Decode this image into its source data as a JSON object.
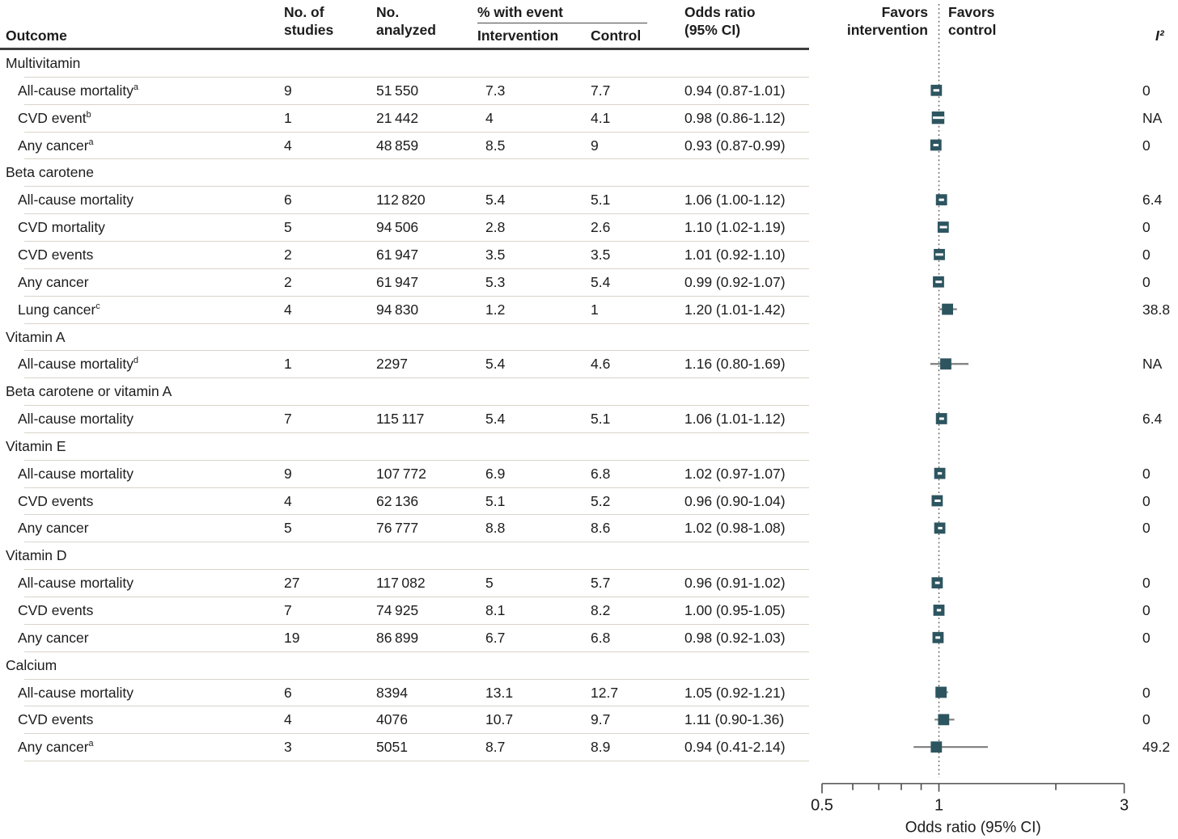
{
  "header": {
    "col_outcome": "Outcome",
    "col_studies": "No. of\nstudies",
    "col_analyzed": "No.\nanalyzed",
    "col_event_group": "% with event",
    "col_intervention": "Intervention",
    "col_control": "Control",
    "col_or": "Odds ratio\n(95% CI)",
    "favors_intervention": "Favors\nintervention",
    "favors_control": "Favors\ncontrol",
    "col_i2": "I²"
  },
  "colors": {
    "marker": "#2d5560",
    "ci_line": "#7d7d7d",
    "ci_inner_dash": "#ffffff",
    "separator": "#d9d4ca",
    "header_rule": "#3d3d3d",
    "axis": "#4d4d4d",
    "dotted_line": "#5a5a5a",
    "text": "#1c1c1c"
  },
  "chart_data": {
    "type": "forest",
    "marker_shape": "square",
    "null_line": 1,
    "axis": {
      "xmin": 0.5,
      "xmax": 3,
      "ticks": [
        0.5,
        0.6,
        0.7,
        0.8,
        0.9,
        1,
        2,
        3
      ],
      "labeled_ticks": [
        "0.5",
        "1",
        "3"
      ],
      "xlabel": "Odds ratio (95% CI)"
    },
    "rows": [
      {
        "t": "section",
        "outcome": "Multivitamin"
      },
      {
        "t": "data",
        "outcome": "All-cause mortality",
        "sup": "a",
        "studies": "9",
        "analyzed": "51 550",
        "intervention": "7.3",
        "control": "7.7",
        "or_text": "0.94 (0.87-1.01)",
        "or": 0.94,
        "lo": 0.87,
        "hi": 1.01,
        "i2": "0"
      },
      {
        "t": "data",
        "outcome": "CVD event",
        "sup": "b",
        "studies": "1",
        "analyzed": "21 442",
        "intervention": "4",
        "control": "4.1",
        "or_text": "0.98 (0.86-1.12)",
        "or": 0.98,
        "lo": 0.86,
        "hi": 1.12,
        "i2": "NA",
        "sz": 15.5
      },
      {
        "t": "data",
        "outcome": "Any cancer",
        "sup": "a",
        "studies": "4",
        "analyzed": "48 859",
        "intervention": "8.5",
        "control": "9",
        "or_text": "0.93 (0.87-0.99)",
        "or": 0.93,
        "lo": 0.87,
        "hi": 0.99,
        "i2": "0"
      },
      {
        "t": "section",
        "outcome": "Beta carotene"
      },
      {
        "t": "data",
        "outcome": "All-cause mortality",
        "studies": "6",
        "analyzed": "112 820",
        "intervention": "5.4",
        "control": "5.1",
        "or_text": "1.06 (1.00-1.12)",
        "or": 1.06,
        "lo": 1.0,
        "hi": 1.12,
        "i2": "6.4"
      },
      {
        "t": "data",
        "outcome": "CVD mortality",
        "studies": "5",
        "analyzed": "94 506",
        "intervention": "2.8",
        "control": "2.6",
        "or_text": "1.10 (1.02-1.19)",
        "or": 1.1,
        "lo": 1.02,
        "hi": 1.19,
        "i2": "0"
      },
      {
        "t": "data",
        "outcome": "CVD events",
        "studies": "2",
        "analyzed": "61 947",
        "intervention": "3.5",
        "control": "3.5",
        "or_text": "1.01 (0.92-1.10)",
        "or": 1.01,
        "lo": 0.92,
        "hi": 1.1,
        "i2": "0"
      },
      {
        "t": "data",
        "outcome": "Any cancer",
        "studies": "2",
        "analyzed": "61 947",
        "intervention": "5.3",
        "control": "5.4",
        "or_text": "0.99 (0.92-1.07)",
        "or": 0.99,
        "lo": 0.92,
        "hi": 1.07,
        "i2": "0"
      },
      {
        "t": "data",
        "outcome": "Lung cancer",
        "sup": "c",
        "studies": "4",
        "analyzed": "94 830",
        "intervention": "1.2",
        "control": "1",
        "or_text": "1.20 (1.01-1.42)",
        "or": 1.2,
        "lo": 1.01,
        "hi": 1.42,
        "i2": "38.8"
      },
      {
        "t": "section",
        "outcome": "Vitamin A"
      },
      {
        "t": "data",
        "outcome": "All-cause mortality",
        "sup": "d",
        "studies": "1",
        "analyzed": "2297",
        "intervention": "5.4",
        "control": "4.6",
        "or_text": "1.16 (0.80-1.69)",
        "or": 1.16,
        "lo": 0.8,
        "hi": 1.69,
        "i2": "NA"
      },
      {
        "t": "section",
        "outcome": "Beta carotene or vitamin A"
      },
      {
        "t": "data",
        "outcome": "All-cause mortality",
        "studies": "7",
        "analyzed": "115 117",
        "intervention": "5.4",
        "control": "5.1",
        "or_text": "1.06 (1.01-1.12)",
        "or": 1.06,
        "lo": 1.01,
        "hi": 1.12,
        "i2": "6.4"
      },
      {
        "t": "section",
        "outcome": "Vitamin E"
      },
      {
        "t": "data",
        "outcome": "All-cause mortality",
        "studies": "9",
        "analyzed": "107 772",
        "intervention": "6.9",
        "control": "6.8",
        "or_text": "1.02 (0.97-1.07)",
        "or": 1.02,
        "lo": 0.97,
        "hi": 1.07,
        "i2": "0"
      },
      {
        "t": "data",
        "outcome": "CVD events",
        "studies": "4",
        "analyzed": "62 136",
        "intervention": "5.1",
        "control": "5.2",
        "or_text": "0.96 (0.90-1.04)",
        "or": 0.96,
        "lo": 0.9,
        "hi": 1.04,
        "i2": "0"
      },
      {
        "t": "data",
        "outcome": "Any cancer",
        "studies": "5",
        "analyzed": "76 777",
        "intervention": "8.8",
        "control": "8.6",
        "or_text": "1.02 (0.98-1.08)",
        "or": 1.02,
        "lo": 0.98,
        "hi": 1.08,
        "i2": "0"
      },
      {
        "t": "section",
        "outcome": "Vitamin D"
      },
      {
        "t": "data",
        "outcome": "All-cause mortality",
        "studies": "27",
        "analyzed": "117 082",
        "intervention": "5",
        "control": "5.7",
        "or_text": "0.96 (0.91-1.02)",
        "or": 0.96,
        "lo": 0.91,
        "hi": 1.02,
        "i2": "0"
      },
      {
        "t": "data",
        "outcome": "CVD events",
        "studies": "7",
        "analyzed": "74 925",
        "intervention": "8.1",
        "control": "8.2",
        "or_text": "1.00 (0.95-1.05)",
        "or": 1.0,
        "lo": 0.95,
        "hi": 1.05,
        "i2": "0"
      },
      {
        "t": "data",
        "outcome": "Any cancer",
        "studies": "19",
        "analyzed": "86 899",
        "intervention": "6.7",
        "control": "6.8",
        "or_text": "0.98 (0.92-1.03)",
        "or": 0.98,
        "lo": 0.92,
        "hi": 1.03,
        "i2": "0"
      },
      {
        "t": "section",
        "outcome": "Calcium"
      },
      {
        "t": "data",
        "outcome": "All-cause mortality",
        "studies": "6",
        "analyzed": "8394",
        "intervention": "13.1",
        "control": "12.7",
        "or_text": "1.05 (0.92-1.21)",
        "or": 1.05,
        "lo": 0.92,
        "hi": 1.21,
        "i2": "0"
      },
      {
        "t": "data",
        "outcome": "CVD events",
        "studies": "4",
        "analyzed": "4076",
        "intervention": "10.7",
        "control": "9.7",
        "or_text": "1.11 (0.90-1.36)",
        "or": 1.11,
        "lo": 0.9,
        "hi": 1.36,
        "i2": "0"
      },
      {
        "t": "data",
        "outcome": "Any cancer",
        "sup": "a",
        "studies": "3",
        "analyzed": "5051",
        "intervention": "8.7",
        "control": "8.9",
        "or_text": "0.94 (0.41-2.14)",
        "or": 0.94,
        "lo": 0.41,
        "hi": 2.14,
        "i2": "49.2"
      }
    ]
  }
}
